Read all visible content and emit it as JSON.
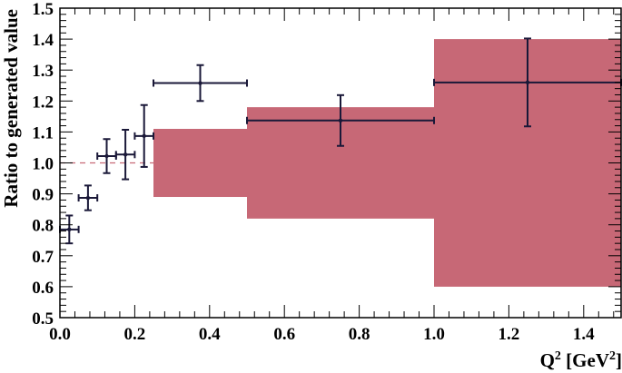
{
  "chart_data": {
    "type": "scatter",
    "title": "",
    "xlabel_main": "Q",
    "xlabel_sup1": "2",
    "xlabel_mid": " [GeV",
    "xlabel_sup2": "2",
    "xlabel_end": "]",
    "ylabel": "Ratio to generated value",
    "xlim": [
      0,
      1.5
    ],
    "ylim": [
      0.5,
      1.5
    ],
    "x_ticks": [
      0.0,
      0.2,
      0.4,
      0.6,
      0.8,
      1.0,
      1.2,
      1.4
    ],
    "x_tick_labels": [
      "0.0",
      "0.2",
      "0.4",
      "0.6",
      "0.8",
      "1.0",
      "1.2",
      "1.4"
    ],
    "y_ticks": [
      0.5,
      0.6,
      0.7,
      0.8,
      0.9,
      1.0,
      1.1,
      1.2,
      1.3,
      1.4,
      1.5
    ],
    "y_tick_labels": [
      "0.5",
      "0.6",
      "0.7",
      "0.8",
      "0.9",
      "1.0",
      "1.1",
      "1.2",
      "1.3",
      "1.4",
      "1.5"
    ],
    "reference_line": 1.0,
    "colors": {
      "band": "#c76876",
      "points": "#1a1838",
      "reference": "#c76876",
      "axes": "#000000"
    },
    "bands": [
      {
        "x_low": 0.25,
        "x_high": 0.5,
        "y_low": 0.89,
        "y_high": 1.11
      },
      {
        "x_low": 0.5,
        "x_high": 1.0,
        "y_low": 0.82,
        "y_high": 1.18
      },
      {
        "x_low": 1.0,
        "x_high": 1.5,
        "y_low": 0.6,
        "y_high": 1.4
      }
    ],
    "points": [
      {
        "x": 0.025,
        "y": 0.785,
        "x_err": 0.025,
        "y_err": 0.045
      },
      {
        "x": 0.075,
        "y": 0.887,
        "x_err": 0.025,
        "y_err": 0.04
      },
      {
        "x": 0.125,
        "y": 1.022,
        "x_err": 0.025,
        "y_err": 0.055
      },
      {
        "x": 0.175,
        "y": 1.027,
        "x_err": 0.025,
        "y_err": 0.08
      },
      {
        "x": 0.225,
        "y": 1.087,
        "x_err": 0.025,
        "y_err": 0.1
      },
      {
        "x": 0.375,
        "y": 1.258,
        "x_err": 0.125,
        "y_err": 0.058
      },
      {
        "x": 0.75,
        "y": 1.137,
        "x_err": 0.25,
        "y_err": 0.082
      },
      {
        "x": 1.25,
        "y": 1.26,
        "x_err": 0.25,
        "y_err": 0.142
      }
    ]
  }
}
